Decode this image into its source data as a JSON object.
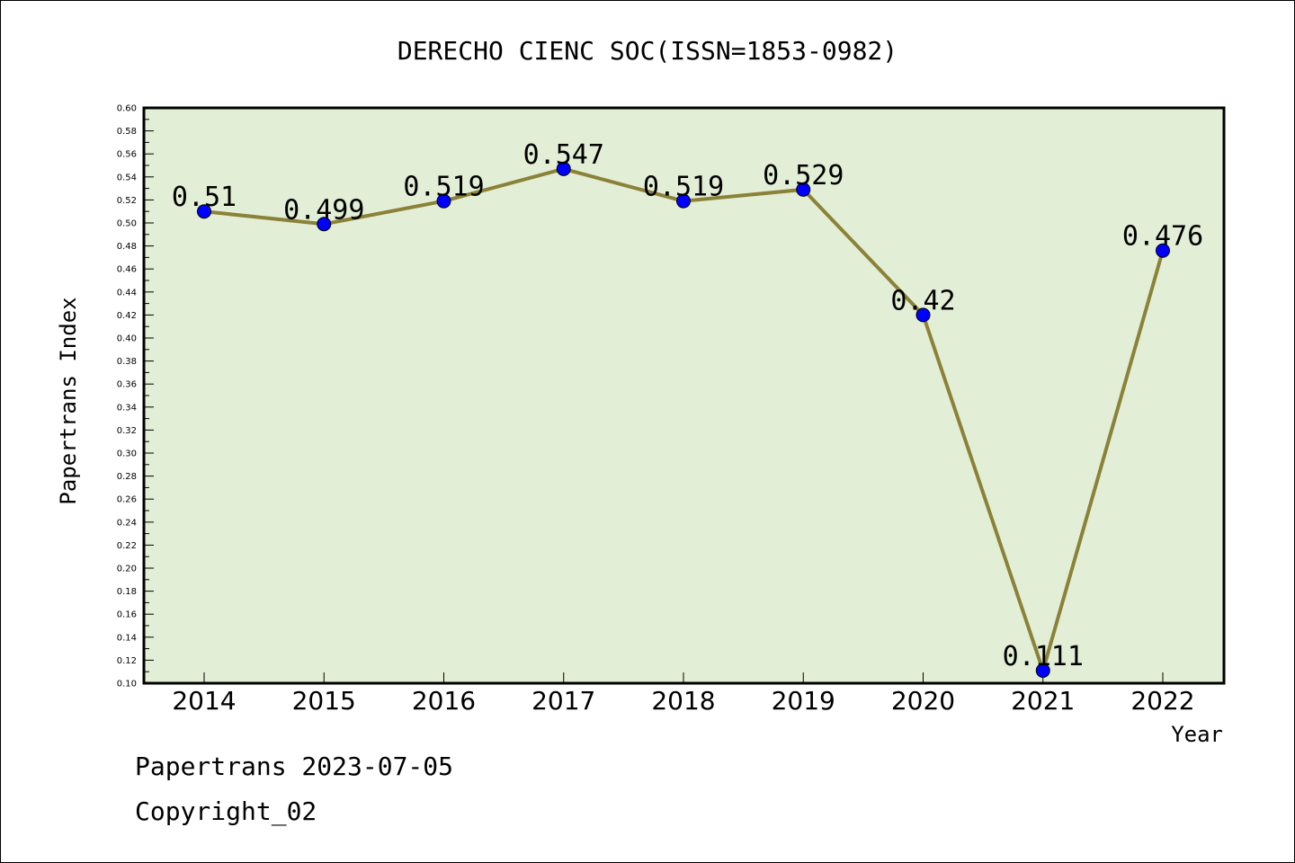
{
  "chart_data": {
    "type": "line",
    "title": "DERECHO CIENC SOC(ISSN=1853-0982)",
    "xlabel": "Year",
    "ylabel": "Papertrans Index",
    "categories": [
      "2014",
      "2015",
      "2016",
      "2017",
      "2018",
      "2019",
      "2020",
      "2021",
      "2022"
    ],
    "series": [
      {
        "values": [
          0.51,
          0.499,
          0.519,
          0.547,
          0.519,
          0.529,
          0.42,
          0.111,
          0.476
        ],
        "labels": [
          "0.51",
          "0.499",
          "0.519",
          "0.547",
          "0.519",
          "0.529",
          "0.42",
          "0.111",
          "0.476"
        ]
      }
    ],
    "ylim": [
      0.1,
      0.6
    ],
    "y_major_step": 0.02,
    "y_ticks": [
      "0.10",
      "0.12",
      "0.14",
      "0.16",
      "0.18",
      "0.20",
      "0.22",
      "0.24",
      "0.26",
      "0.28",
      "0.30",
      "0.32",
      "0.34",
      "0.36",
      "0.38",
      "0.40",
      "0.42",
      "0.44",
      "0.46",
      "0.48",
      "0.50",
      "0.52",
      "0.54",
      "0.56",
      "0.58",
      "0.60"
    ],
    "grid": false,
    "legend": "none",
    "colors": {
      "plot_background": "#e2efd6",
      "line": "#8b8238",
      "marker": "#0000ff",
      "axis": "#000000"
    }
  },
  "footer": {
    "date": "Papertrans 2023-07-05",
    "copyright": "Copyright_02"
  }
}
